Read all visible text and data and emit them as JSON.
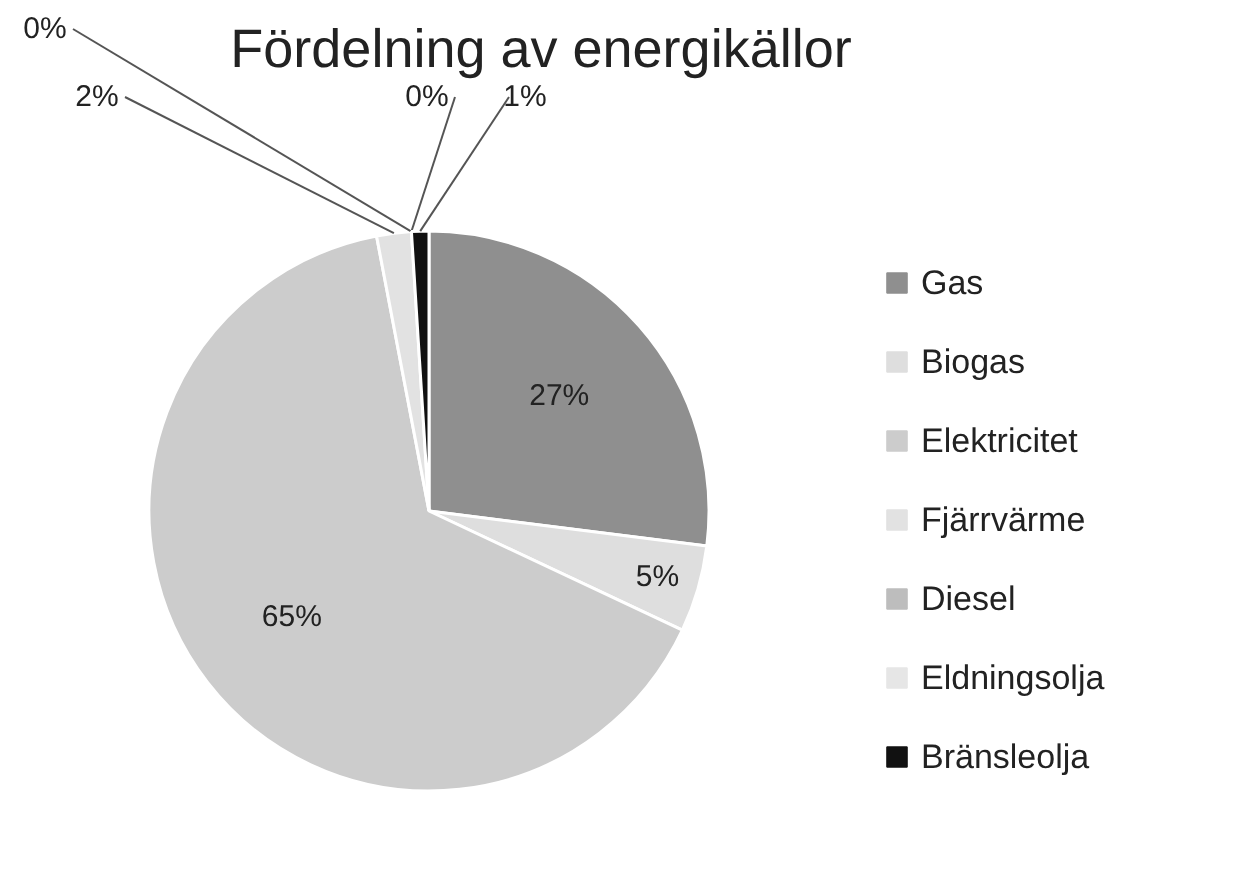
{
  "chart_data": {
    "type": "pie",
    "title": "Fördelning av energikällor",
    "categories": [
      "Gas",
      "Biogas",
      "Elektricitet",
      "Fjärrvärme",
      "Diesel",
      "Eldningsolja",
      "Bränsleolja"
    ],
    "values": [
      27,
      5,
      65,
      2,
      0,
      0,
      1
    ],
    "colors": [
      "#8f8f8f",
      "#dedede",
      "#cccccc",
      "#e2e2e2",
      "#bdbdbd",
      "#e6e6e6",
      "#111111"
    ],
    "value_labels": [
      "27%",
      "5%",
      "65%",
      "2%",
      "0%",
      "0%",
      "1%"
    ],
    "legend": "right"
  }
}
